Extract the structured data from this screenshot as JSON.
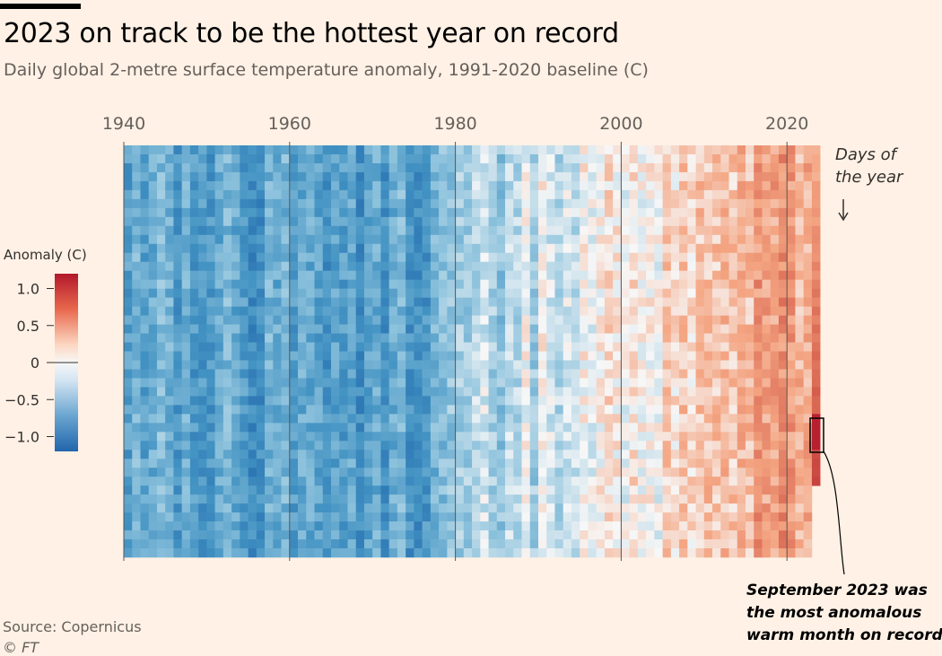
{
  "header": {
    "title": "2023 on track to be the hottest year on record",
    "subtitle": "Daily global 2-metre surface temperature anomaly, 1991-2020 baseline (C)"
  },
  "footer": {
    "source": "Source: Copernicus",
    "credit": "© FT"
  },
  "colors": {
    "background": "#FFF1E5",
    "cold": "#2166AC",
    "neutral": "#F7F7F7",
    "warm": "#B2182B"
  },
  "chart_data": {
    "type": "heatmap",
    "title": "2023 on track to be the hottest year on record",
    "x_axis": {
      "label": "",
      "range": [
        1940,
        2023
      ],
      "ticks": [
        1940,
        1960,
        1980,
        2000,
        2020
      ],
      "tick_labels": [
        "1940",
        "1960",
        "1980",
        "2000",
        "2020"
      ]
    },
    "y_axis": {
      "label": "Days of the year",
      "range": [
        1,
        365
      ]
    },
    "colorbar": {
      "title": "Anomaly (C)",
      "range": [
        -1.2,
        1.2
      ],
      "ticks": [
        1.0,
        0.5,
        0,
        -0.5,
        -1.0
      ],
      "tick_labels": [
        "1.0",
        "0.5",
        "0",
        "−0.5",
        "−1.0"
      ]
    },
    "annual_mean_anomaly": {
      "years": [
        1940,
        1941,
        1942,
        1943,
        1944,
        1945,
        1946,
        1947,
        1948,
        1949,
        1950,
        1951,
        1952,
        1953,
        1954,
        1955,
        1956,
        1957,
        1958,
        1959,
        1960,
        1961,
        1962,
        1963,
        1964,
        1965,
        1966,
        1967,
        1968,
        1969,
        1970,
        1971,
        1972,
        1973,
        1974,
        1975,
        1976,
        1977,
        1978,
        1979,
        1980,
        1981,
        1982,
        1983,
        1984,
        1985,
        1986,
        1987,
        1988,
        1989,
        1990,
        1991,
        1992,
        1993,
        1994,
        1995,
        1996,
        1997,
        1998,
        1999,
        2000,
        2001,
        2002,
        2003,
        2004,
        2005,
        2006,
        2007,
        2008,
        2009,
        2010,
        2011,
        2012,
        2013,
        2014,
        2015,
        2016,
        2017,
        2018,
        2019,
        2020,
        2021,
        2022,
        2023
      ],
      "values": [
        -0.62,
        -0.58,
        -0.62,
        -0.6,
        -0.55,
        -0.6,
        -0.66,
        -0.64,
        -0.66,
        -0.7,
        -0.74,
        -0.62,
        -0.6,
        -0.56,
        -0.74,
        -0.75,
        -0.78,
        -0.58,
        -0.6,
        -0.62,
        -0.66,
        -0.6,
        -0.6,
        -0.58,
        -0.78,
        -0.76,
        -0.7,
        -0.68,
        -0.74,
        -0.6,
        -0.62,
        -0.76,
        -0.62,
        -0.5,
        -0.76,
        -0.72,
        -0.8,
        -0.5,
        -0.54,
        -0.42,
        -0.3,
        -0.24,
        -0.32,
        -0.22,
        -0.32,
        -0.34,
        -0.28,
        -0.16,
        -0.12,
        -0.24,
        -0.08,
        -0.1,
        -0.26,
        -0.22,
        -0.16,
        -0.06,
        -0.14,
        0.0,
        0.14,
        -0.02,
        -0.04,
        0.06,
        0.12,
        0.12,
        0.08,
        0.18,
        0.14,
        0.16,
        0.06,
        0.18,
        0.24,
        0.14,
        0.18,
        0.22,
        0.24,
        0.34,
        0.48,
        0.42,
        0.36,
        0.44,
        0.52,
        0.42,
        0.42,
        0.62
      ]
    },
    "annotations": [
      {
        "text_lines": [
          "Days of",
          "the year"
        ],
        "arrow": "down"
      },
      {
        "text_lines": [
          "September 2023 was",
          "the most anomalous",
          "warm month on record"
        ],
        "target_year": 2023,
        "target_month": "September"
      }
    ]
  }
}
